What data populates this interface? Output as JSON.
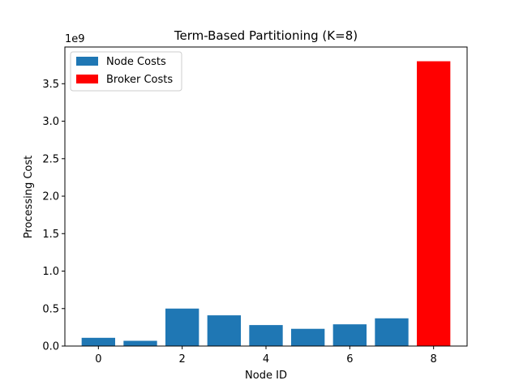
{
  "chart_data": {
    "type": "bar",
    "title": "Term-Based Partitioning (K=8)",
    "xlabel": "Node ID",
    "ylabel": "Processing Cost",
    "y_scale_label": "1e9",
    "x_ticks": [
      "0",
      "2",
      "4",
      "6",
      "8"
    ],
    "x_tick_values": [
      0,
      2,
      4,
      6,
      8
    ],
    "y_ticks": [
      "0.0",
      "0.5",
      "1.0",
      "1.5",
      "2.0",
      "2.5",
      "3.0",
      "3.5"
    ],
    "y_tick_values": [
      0.0,
      0.5,
      1.0,
      1.5,
      2.0,
      2.5,
      3.0,
      3.5
    ],
    "xlim": [
      -0.8,
      8.8
    ],
    "ylim": [
      0,
      3.99
    ],
    "legend_position": "top-left",
    "series": [
      {
        "name": "Node Costs",
        "color": "#1f77b4",
        "x": [
          0,
          1,
          2,
          3,
          4,
          5,
          6,
          7
        ],
        "values": [
          0.11,
          0.07,
          0.5,
          0.41,
          0.28,
          0.23,
          0.29,
          0.37
        ]
      },
      {
        "name": "Broker Costs",
        "color": "#ff0000",
        "x": [
          8
        ],
        "values": [
          3.8
        ]
      }
    ]
  }
}
